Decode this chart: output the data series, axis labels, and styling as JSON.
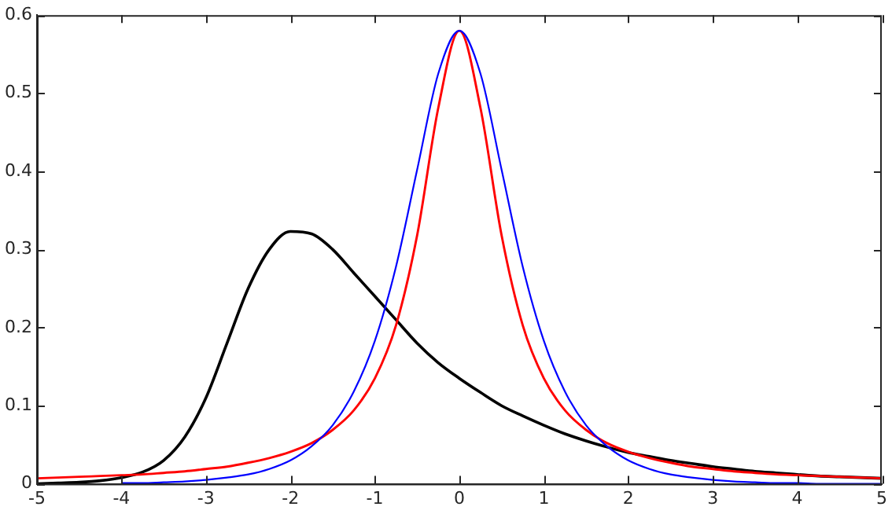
{
  "chart_data": {
    "type": "line",
    "x": [
      -5,
      -4.75,
      -4.5,
      -4.25,
      -4,
      -3.75,
      -3.5,
      -3.25,
      -3,
      -2.75,
      -2.5,
      -2.25,
      -2,
      -1.75,
      -1.5,
      -1.25,
      -1,
      -0.75,
      -0.5,
      -0.25,
      0,
      0.25,
      0.5,
      0.75,
      1,
      1.25,
      1.5,
      1.75,
      2,
      2.25,
      2.5,
      2.75,
      3,
      3.25,
      3.5,
      3.75,
      4,
      4.25,
      4.5,
      4.75,
      5
    ],
    "series": [
      {
        "color": "#000000",
        "values": [
          0,
          0.001,
          0.002,
          0.004,
          0.008,
          0.015,
          0.03,
          0.06,
          0.11,
          0.18,
          0.25,
          0.3,
          0.323,
          0.32,
          0.3,
          0.27,
          0.24,
          0.21,
          0.18,
          0.155,
          0.135,
          0.117,
          0.1,
          0.087,
          0.075,
          0.064,
          0.055,
          0.047,
          0.04,
          0.035,
          0.03,
          0.026,
          0.022,
          0.019,
          0.016,
          0.014,
          0.012,
          0.01,
          0.009,
          0.008,
          0.007
        ]
      },
      {
        "color": "#ff0000",
        "values": [
          0.007,
          0.008,
          0.009,
          0.01,
          0.011,
          0.012,
          0.014,
          0.016,
          0.019,
          0.022,
          0.027,
          0.033,
          0.041,
          0.052,
          0.069,
          0.094,
          0.135,
          0.203,
          0.318,
          0.481,
          0.58,
          0.481,
          0.318,
          0.203,
          0.135,
          0.094,
          0.069,
          0.052,
          0.041,
          0.033,
          0.027,
          0.022,
          0.019,
          0.016,
          0.014,
          0.012,
          0.011,
          0.01,
          0.009,
          0.008,
          0.007
        ]
      },
      {
        "color": "#0000ff",
        "values": [
          null,
          null,
          null,
          null,
          0.001,
          0.001,
          0.002,
          0.003,
          0.005,
          0.008,
          0.012,
          0.019,
          0.03,
          0.048,
          0.075,
          0.118,
          0.183,
          0.278,
          0.402,
          0.525,
          0.58,
          0.525,
          0.402,
          0.278,
          0.183,
          0.118,
          0.075,
          0.048,
          0.03,
          0.019,
          0.012,
          0.008,
          0.005,
          0.003,
          0.002,
          0.001,
          0.001,
          0,
          0,
          0,
          0
        ]
      }
    ],
    "xlim": [
      -5,
      5
    ],
    "xticks": [
      -5,
      -4,
      -3,
      -2,
      -1,
      0,
      1,
      2,
      3,
      4,
      5
    ],
    "ylim": [
      0,
      0.6
    ],
    "yticks": [
      0,
      0.1,
      0.2,
      0.3,
      0.4,
      0.5,
      0.6
    ],
    "grid": false,
    "legend": false,
    "marker": "none",
    "line_style": "solid"
  }
}
